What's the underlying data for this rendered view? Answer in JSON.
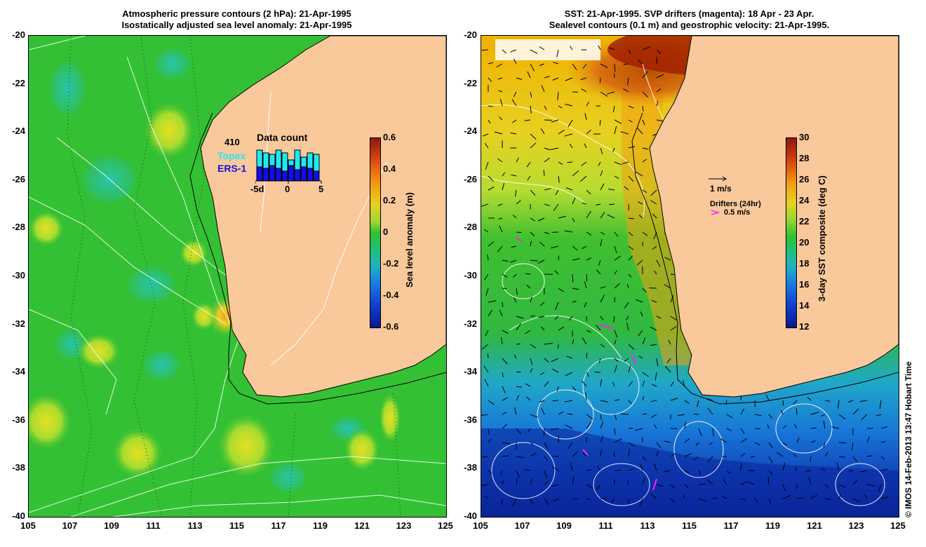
{
  "left": {
    "title_line1": "Atmospheric pressure contours (2 hPa): 21-Apr-1995",
    "title_line2": "Isostatically adjusted sea level anomaly: 21-Apr-1995",
    "colorbar": {
      "label": "Sea level anomaly (m)",
      "ticks": [
        "0.6",
        "0.4",
        "0.2",
        "0",
        "-0.2",
        "-0.4",
        "-0.6"
      ]
    },
    "data_count": {
      "title": "Data count",
      "value": "410",
      "topex_label": "Topex",
      "ers_label": "ERS-1",
      "axis_left": "-5d",
      "axis_mid": "0",
      "axis_right": "5",
      "topex_color": "#22e8f0",
      "ers_color": "#1010e0"
    }
  },
  "right": {
    "title_line1": "SST: 21-Apr-1995. SVP drifters (magenta): 18 Apr - 23 Apr.",
    "title_line2": "Sealevel contours (0.1 m) and geostrophic velocity: 21-Apr-1995.",
    "colorbar": {
      "label": "3-day SST composite (deg C)",
      "ticks": [
        "30",
        "28",
        "26",
        "24",
        "22",
        "20",
        "18",
        "16",
        "14",
        "12"
      ]
    },
    "scale_label": "1 m/s",
    "drifters_label": "Drifters (24hr)",
    "drifters_speed": "0.5 m/s",
    "drifter_color": "#ff20ff"
  },
  "axes": {
    "y_ticks": [
      "-20",
      "-22",
      "-24",
      "-26",
      "-28",
      "-30",
      "-32",
      "-34",
      "-36",
      "-38",
      "-40"
    ],
    "x_ticks": [
      "105",
      "107",
      "109",
      "111",
      "113",
      "115",
      "117",
      "119",
      "121",
      "123",
      "125"
    ]
  },
  "credit": "© IMOS 14-Feb-2013 13:47 Hobart Time",
  "colors": {
    "land": "#f9c89b",
    "ocean_green": "#2ec030",
    "sst_warm": "#f0a000",
    "sst_cold": "#1030b0"
  }
}
